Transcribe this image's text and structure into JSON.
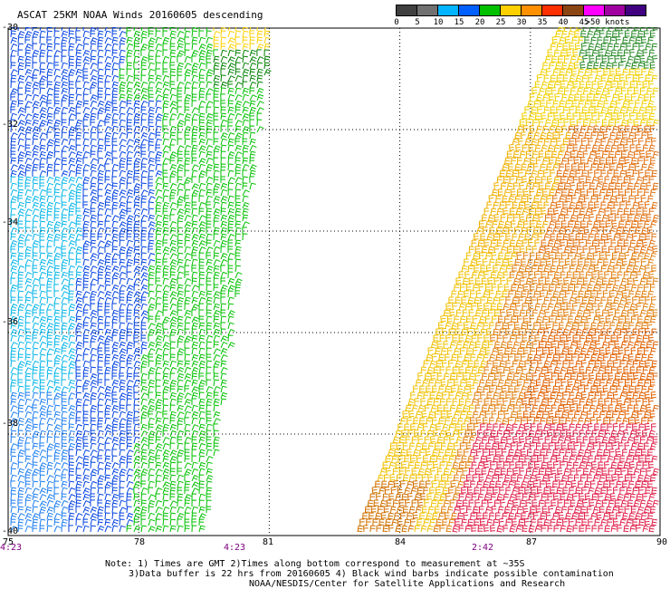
{
  "title": "ASCAT 25KM NOAA Winds 20160605 descending",
  "legend": {
    "ticks": [
      "0",
      "5",
      "10",
      "15",
      "20",
      "25",
      "30",
      "35",
      "40",
      "45"
    ],
    "units": ">50 knots",
    "colors": [
      "#404040",
      "#707070",
      "#00b4ff",
      "#0060ff",
      "#00c000",
      "#ffd000",
      "#ff9000",
      "#ff3000",
      "#8b4513",
      "#ff00ff",
      "#a000a0",
      "#400080"
    ]
  },
  "map": {
    "lat_labels": [
      "-30",
      "-32",
      "-34",
      "-36",
      "-38",
      "-40"
    ],
    "lat_values": [
      -30,
      -32,
      -34,
      -36,
      -38,
      -40
    ],
    "lon_labels": [
      "75",
      "78",
      "81",
      "84",
      "87",
      "90"
    ],
    "lon_values": [
      75,
      78,
      81,
      84,
      87,
      90
    ],
    "lat_range": [
      -40,
      -30
    ],
    "lon_range": [
      75,
      90
    ],
    "gridlines": true
  },
  "times": [
    "4:23",
    "4:23",
    "2:42"
  ],
  "notes": [
    "Note: 1) Times are GMT 2)Times along bottom correspond to measurement at ~35S",
    "3)Data buffer is 22 hrs from 20160605 4) Black wind barbs indicate possible contamination",
    "NOAA/NESDIS/Center for Satellite Applications and Research"
  ]
}
